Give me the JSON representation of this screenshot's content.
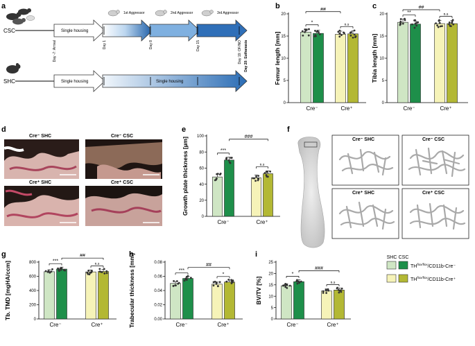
{
  "panel_labels": {
    "a": "a",
    "b": "b",
    "c": "c",
    "d": "d",
    "e": "e",
    "f": "f",
    "g": "g",
    "h": "h",
    "i": "i"
  },
  "timeline": {
    "csc_label": "CSC",
    "shc_label": "SHC",
    "single_housing": "Single housing",
    "aggressors": [
      "1st Aggressor",
      "2nd Aggressor",
      "3rd Aggressor"
    ],
    "days": [
      "Day -7: Arrival",
      "Day 1",
      "Day 8",
      "Day 15",
      "Day 19: OF/NO"
    ],
    "euthanasia": "Day 20: Euthanasia"
  },
  "micro_labels": {
    "d": [
      "Cre⁻ SHC",
      "Cre⁻ CSC",
      "Cre⁺ SHC",
      "Cre⁺ CSC"
    ],
    "f": [
      "Cre⁻ SHC",
      "Cre⁻ CSC",
      "Cre⁺ SHC",
      "Cre⁺ CSC"
    ]
  },
  "legend": {
    "headers": [
      "SHC",
      "CSC"
    ],
    "rows": [
      {
        "base": "TH",
        "sup": "flox/flox",
        "tail": "/CD11b-Cre",
        "suffix": "⁻"
      },
      {
        "base": "TH",
        "sup": "flox/flox",
        "tail": "/CD11b-Cre",
        "suffix": "⁺"
      }
    ]
  },
  "colors": {
    "shc_cre_neg": "#cfe6c4",
    "csc_cre_neg": "#1e8f4a",
    "shc_cre_pos": "#f6f3b8",
    "csc_cre_pos": "#b3b834"
  },
  "chart_data": [
    {
      "id": "b",
      "type": "bar",
      "ylabel": "Femur length [mm]",
      "ylim": [
        0,
        20
      ],
      "yticks": [
        0,
        5,
        10,
        15,
        20
      ],
      "categories": [
        "Cre⁻",
        "Cre⁺"
      ],
      "series": [
        {
          "name": "SHC",
          "values": [
            15.9,
            15.4
          ]
        },
        {
          "name": "CSC",
          "values": [
            15.6,
            15.5
          ]
        }
      ],
      "annotations": [
        {
          "text": "*",
          "between": "Cre⁻ SHC–CSC"
        },
        {
          "text": "n.s",
          "between": "Cre⁺ SHC–CSC"
        },
        {
          "text": "##",
          "between": "Cre⁻ SHC–Cre⁺ SHC"
        }
      ]
    },
    {
      "id": "c",
      "type": "bar",
      "ylabel": "Tibia length [mm]",
      "ylim": [
        0,
        20
      ],
      "yticks": [
        0,
        5,
        10,
        15,
        20
      ],
      "categories": [
        "Cre⁻",
        "Cre⁺"
      ],
      "series": [
        {
          "name": "SHC",
          "values": [
            18.1,
            17.8
          ]
        },
        {
          "name": "CSC",
          "values": [
            17.7,
            17.8
          ]
        }
      ],
      "annotations": [
        {
          "text": "**",
          "between": "Cre⁻ SHC–CSC"
        },
        {
          "text": "n.s",
          "between": "Cre⁺ SHC–CSC"
        },
        {
          "text": "##",
          "between": "Cre⁻ SHC–Cre⁺ SHC"
        }
      ]
    },
    {
      "id": "e",
      "type": "bar",
      "ylabel": "Growth plate thickness [µm]",
      "ylim": [
        0,
        100
      ],
      "yticks": [
        0,
        20,
        40,
        60,
        80,
        100
      ],
      "categories": [
        "Cre⁻",
        "Cre⁺"
      ],
      "series": [
        {
          "name": "SHC",
          "values": [
            49,
            48
          ]
        },
        {
          "name": "CSC",
          "values": [
            70,
            53
          ]
        }
      ],
      "annotations": [
        {
          "text": "***",
          "between": "Cre⁻ SHC–CSC"
        },
        {
          "text": "n.s",
          "between": "Cre⁺ SHC–CSC"
        },
        {
          "text": "###",
          "between": "Cre⁻ CSC–Cre⁺ CSC"
        }
      ]
    },
    {
      "id": "g",
      "type": "bar",
      "ylabel": "Tb. TMD [mgHA/ccm]",
      "ylim": [
        0,
        800
      ],
      "yticks": [
        0,
        200,
        400,
        600,
        800
      ],
      "categories": [
        "Cre⁻",
        "Cre⁺"
      ],
      "series": [
        {
          "name": "SHC",
          "values": [
            665,
            662
          ]
        },
        {
          "name": "CSC",
          "values": [
            702,
            668
          ]
        }
      ],
      "annotations": [
        {
          "text": "***",
          "between": "Cre⁻ SHC–CSC"
        },
        {
          "text": "n.s",
          "between": "Cre⁺ SHC–CSC"
        },
        {
          "text": "##",
          "between": "Cre⁻ CSC–Cre⁺ CSC"
        }
      ]
    },
    {
      "id": "h",
      "type": "bar",
      "ylabel": "Trabecular thickness [mm]",
      "ylim": [
        0,
        0.08
      ],
      "yticks": [
        0.0,
        0.02,
        0.04,
        0.06,
        0.08
      ],
      "ytick_labels": [
        "0.00",
        "0.02",
        "0.04",
        "0.06",
        "0.08"
      ],
      "categories": [
        "Cre⁻",
        "Cre⁺"
      ],
      "series": [
        {
          "name": "SHC",
          "values": [
            0.05,
            0.049
          ]
        },
        {
          "name": "CSC",
          "values": [
            0.057,
            0.052
          ]
        }
      ],
      "annotations": [
        {
          "text": "***",
          "between": "Cre⁻ SHC–CSC"
        },
        {
          "text": "*",
          "between": "Cre⁺ SHC–CSC"
        },
        {
          "text": "##",
          "between": "Cre⁻ CSC–Cre⁺ CSC"
        }
      ]
    },
    {
      "id": "i",
      "type": "bar",
      "ylabel": "BV/TV [%]",
      "ylim": [
        0,
        25
      ],
      "yticks": [
        0,
        5,
        10,
        15,
        20,
        25
      ],
      "categories": [
        "Cre⁻",
        "Cre⁺"
      ],
      "series": [
        {
          "name": "SHC",
          "values": [
            14.6,
            12.3
          ]
        },
        {
          "name": "CSC",
          "values": [
            16.4,
            12.7
          ]
        }
      ],
      "annotations": [
        {
          "text": "*",
          "between": "Cre⁻ SHC–CSC"
        },
        {
          "text": "n.s",
          "between": "Cre⁺ SHC–CSC"
        },
        {
          "text": "###",
          "between": "Cre⁻ CSC–Cre⁺ CSC"
        }
      ]
    }
  ]
}
